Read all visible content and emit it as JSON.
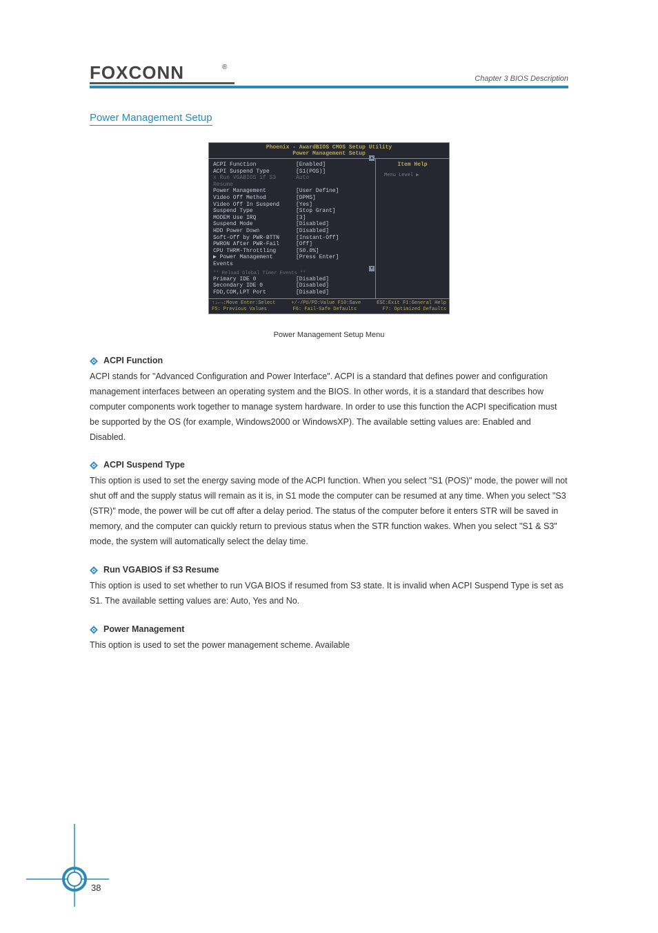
{
  "page": {
    "chapter_label": "Chapter 3  BIOS Description",
    "section_title": "Power Management Setup",
    "caption": "Power Management Setup Menu",
    "page_number": "38"
  },
  "logo": {
    "text": "FOXCONN",
    "reg_mark": "®"
  },
  "bios": {
    "title_line1": "Phoenix - AwardBIOS CMOS Setup Utility",
    "title_line2": "Power Management Setup",
    "help_title": "Item Help",
    "help_sub": "Menu Level  ▶",
    "rows": [
      {
        "label": "ACPI Function",
        "value": "[Enabled]",
        "dim": false
      },
      {
        "label": "ACPI Suspend Type",
        "value": "[S1(POS)]",
        "dim": false
      },
      {
        "label": "x Run VGABIOS if S3 Resume",
        "value": "Auto",
        "dim": true
      },
      {
        "label": "Power Management",
        "value": "[User Define]",
        "dim": false
      },
      {
        "label": "Video Off Method",
        "value": "[DPMS]",
        "dim": false
      },
      {
        "label": "Video Off In Suspend",
        "value": "[Yes]",
        "dim": false
      },
      {
        "label": "Suspend Type",
        "value": "[Stop Grant]",
        "dim": false
      },
      {
        "label": "MODEM Use IRQ",
        "value": "[3]",
        "dim": false
      },
      {
        "label": "Suspend Mode",
        "value": "[Disabled]",
        "dim": false
      },
      {
        "label": "HDD Power Down",
        "value": "[Disabled]",
        "dim": false
      },
      {
        "label": "Soft-Off by PWR-BTTN",
        "value": "[Instant-Off]",
        "dim": false
      },
      {
        "label": "PWRON After PWR-Fail",
        "value": "[Off]",
        "dim": false
      },
      {
        "label": "CPU THRM-Throttling",
        "value": "[50.0%]",
        "dim": false
      },
      {
        "label": "▶ Power Management Events",
        "value": "[Press Enter]",
        "dim": false
      }
    ],
    "section_header": "** Reload Global Timer Events **",
    "rows2": [
      {
        "label": "Primary IDE 0",
        "value": "[Disabled]"
      },
      {
        "label": "Secondary IDE 0",
        "value": "[Disabled]"
      },
      {
        "label": "FDD,COM,LPT Port",
        "value": "[Disabled]"
      }
    ],
    "footer": {
      "line1_left": "↑↓←→:Move  Enter:Select",
      "line1_mid": "+/-/PU/PD:Value  F10:Save",
      "line1_right": "ESC:Exit  F1:General Help",
      "line2_left": "F5: Previous Values",
      "line2_mid": "F6: Fail-Safe Defaults",
      "line2_right": "F7: Optimized Defaults"
    }
  },
  "items": [
    {
      "title": "ACPI Function",
      "body": "ACPI stands for \"Advanced Configuration and Power Interface\". ACPI is a standard that defines power and configuration management interfaces between an operating system and the BIOS. In other words, it is a standard that describes how computer components work together to manage system hardware. In order to use this function the ACPI specification must be supported by the OS (for example, Windows2000 or WindowsXP). The available setting values are: Enabled and Disabled."
    },
    {
      "title": "ACPI Suspend Type",
      "body": "This option is used to set the energy saving mode of the ACPI function. When you select \"S1 (POS)\" mode, the power will not shut off and the supply status will remain as it is, in S1 mode the computer can be resumed at any time. When you select \"S3 (STR)\" mode, the power will be cut off after a delay period. The status of the computer before it enters STR will be saved in memory, and the computer can quickly return to previous status when the STR function wakes. When you select \"S1 & S3\" mode, the system will automatically select the delay time."
    },
    {
      "title": "Run VGABIOS if S3 Resume",
      "body": "This option is used to set whether to run VGA BIOS if resumed from S3 state. It is invalid when ACPI Suspend Type is set as S1. The available setting values are: Auto, Yes and No."
    },
    {
      "title": "Power Management",
      "body": "This option is used to set the power management scheme. Available"
    }
  ],
  "colors": {
    "accent": "#2a8ab4",
    "text": "#333333",
    "bios_bg": "#262831",
    "bios_fg": "#d8d8d8",
    "bios_gold": "#b8a858",
    "bios_dim": "#6a6a78"
  }
}
